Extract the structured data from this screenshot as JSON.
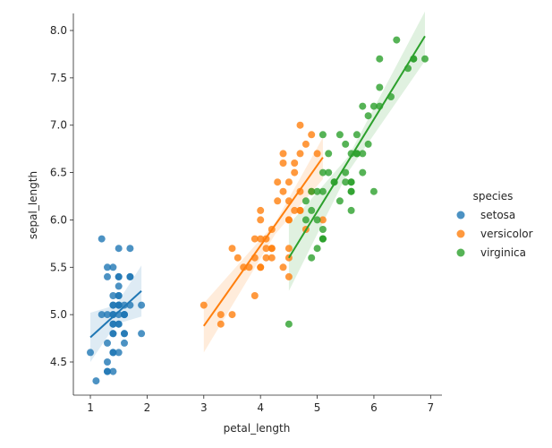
{
  "chart_data": {
    "type": "scatter",
    "xlabel": "petal_length",
    "ylabel": "sepal_length",
    "xlim": [
      0.7,
      7.2
    ],
    "ylim": [
      4.15,
      8.18
    ],
    "xticks": [
      1,
      2,
      3,
      4,
      5,
      6,
      7
    ],
    "yticks": [
      4.5,
      5.0,
      5.5,
      6.0,
      6.5,
      7.0,
      7.5,
      8.0
    ],
    "xtick_labels": [
      "1",
      "2",
      "3",
      "4",
      "5",
      "6",
      "7"
    ],
    "ytick_labels": [
      "4.5",
      "5.0",
      "5.5",
      "6.0",
      "6.5",
      "7.0",
      "7.5",
      "8.0"
    ],
    "grid": false,
    "legend_title": "species",
    "legend_position": "right",
    "series": [
      {
        "name": "setosa",
        "color": "#1f77b4",
        "fit_line": {
          "x": [
            1.0,
            1.9
          ],
          "y": [
            4.76,
            5.25
          ]
        },
        "ci_band": {
          "x": [
            1.0,
            1.45,
            1.9
          ],
          "upper": [
            5.02,
            5.1,
            5.52
          ],
          "lower": [
            4.5,
            4.9,
            4.98
          ]
        },
        "points": [
          [
            1.4,
            5.1
          ],
          [
            1.4,
            4.9
          ],
          [
            1.3,
            4.7
          ],
          [
            1.5,
            4.6
          ],
          [
            1.4,
            5.0
          ],
          [
            1.7,
            5.4
          ],
          [
            1.4,
            4.6
          ],
          [
            1.5,
            5.0
          ],
          [
            1.4,
            4.4
          ],
          [
            1.5,
            4.9
          ],
          [
            1.5,
            5.4
          ],
          [
            1.6,
            4.8
          ],
          [
            1.4,
            4.8
          ],
          [
            1.1,
            4.3
          ],
          [
            1.2,
            5.8
          ],
          [
            1.5,
            5.7
          ],
          [
            1.3,
            5.4
          ],
          [
            1.4,
            5.1
          ],
          [
            1.7,
            5.7
          ],
          [
            1.5,
            5.1
          ],
          [
            1.7,
            5.4
          ],
          [
            1.5,
            5.1
          ],
          [
            1.0,
            4.6
          ],
          [
            1.7,
            5.1
          ],
          [
            1.9,
            4.8
          ],
          [
            1.6,
            5.0
          ],
          [
            1.6,
            5.0
          ],
          [
            1.5,
            5.2
          ],
          [
            1.4,
            5.2
          ],
          [
            1.6,
            4.7
          ],
          [
            1.6,
            4.8
          ],
          [
            1.5,
            5.4
          ],
          [
            1.5,
            5.2
          ],
          [
            1.4,
            5.5
          ],
          [
            1.5,
            4.9
          ],
          [
            1.2,
            5.0
          ],
          [
            1.3,
            5.5
          ],
          [
            1.4,
            4.9
          ],
          [
            1.3,
            4.4
          ],
          [
            1.5,
            5.1
          ],
          [
            1.3,
            5.0
          ],
          [
            1.3,
            4.5
          ],
          [
            1.3,
            4.4
          ],
          [
            1.6,
            5.0
          ],
          [
            1.9,
            5.1
          ],
          [
            1.4,
            4.8
          ],
          [
            1.6,
            5.1
          ],
          [
            1.4,
            4.6
          ],
          [
            1.5,
            5.3
          ],
          [
            1.4,
            5.0
          ]
        ]
      },
      {
        "name": "versicolor",
        "color": "#ff7f0e",
        "fit_line": {
          "x": [
            3.0,
            5.1
          ],
          "y": [
            4.88,
            6.66
          ]
        },
        "ci_band": {
          "x": [
            3.0,
            4.26,
            5.1
          ],
          "upper": [
            5.12,
            5.97,
            6.87
          ],
          "lower": [
            4.6,
            5.85,
            6.43
          ]
        },
        "points": [
          [
            4.7,
            7.0
          ],
          [
            4.5,
            6.4
          ],
          [
            4.9,
            6.9
          ],
          [
            4.0,
            5.5
          ],
          [
            4.6,
            6.5
          ],
          [
            4.5,
            5.7
          ],
          [
            4.7,
            6.3
          ],
          [
            3.3,
            4.9
          ],
          [
            4.6,
            6.6
          ],
          [
            3.9,
            5.2
          ],
          [
            3.5,
            5.0
          ],
          [
            4.2,
            5.9
          ],
          [
            4.0,
            6.0
          ],
          [
            4.7,
            6.1
          ],
          [
            3.6,
            5.6
          ],
          [
            4.4,
            6.7
          ],
          [
            4.5,
            5.6
          ],
          [
            4.1,
            5.8
          ],
          [
            4.5,
            6.2
          ],
          [
            3.9,
            5.6
          ],
          [
            4.8,
            5.9
          ],
          [
            4.0,
            6.1
          ],
          [
            4.9,
            6.3
          ],
          [
            4.7,
            6.1
          ],
          [
            4.3,
            6.4
          ],
          [
            4.4,
            6.6
          ],
          [
            4.8,
            6.8
          ],
          [
            5.0,
            6.7
          ],
          [
            4.5,
            6.0
          ],
          [
            3.5,
            5.7
          ],
          [
            3.8,
            5.5
          ],
          [
            3.7,
            5.5
          ],
          [
            3.9,
            5.8
          ],
          [
            5.1,
            6.0
          ],
          [
            4.5,
            5.4
          ],
          [
            4.5,
            6.0
          ],
          [
            4.7,
            6.7
          ],
          [
            4.4,
            6.3
          ],
          [
            4.1,
            5.6
          ],
          [
            4.0,
            5.5
          ],
          [
            4.4,
            5.5
          ],
          [
            4.6,
            6.1
          ],
          [
            4.0,
            5.8
          ],
          [
            3.3,
            5.0
          ],
          [
            4.2,
            5.6
          ],
          [
            4.2,
            5.7
          ],
          [
            4.2,
            5.7
          ],
          [
            4.3,
            6.2
          ],
          [
            3.0,
            5.1
          ],
          [
            4.1,
            5.7
          ]
        ]
      },
      {
        "name": "virginica",
        "color": "#2ca02c",
        "fit_line": {
          "x": [
            4.5,
            6.9
          ],
          "y": [
            5.6,
            7.94
          ]
        },
        "ci_band": {
          "x": [
            4.5,
            5.55,
            6.9
          ],
          "upper": [
            5.95,
            6.67,
            8.2
          ],
          "lower": [
            5.25,
            6.51,
            7.68
          ]
        },
        "points": [
          [
            6.0,
            6.3
          ],
          [
            5.1,
            5.8
          ],
          [
            5.9,
            7.1
          ],
          [
            5.6,
            6.3
          ],
          [
            5.8,
            6.5
          ],
          [
            6.6,
            7.6
          ],
          [
            4.5,
            4.9
          ],
          [
            6.3,
            7.3
          ],
          [
            5.8,
            6.7
          ],
          [
            6.1,
            7.2
          ],
          [
            5.1,
            6.5
          ],
          [
            5.3,
            6.4
          ],
          [
            5.5,
            6.8
          ],
          [
            5.0,
            5.7
          ],
          [
            5.1,
            5.8
          ],
          [
            5.3,
            6.4
          ],
          [
            5.5,
            6.5
          ],
          [
            6.7,
            7.7
          ],
          [
            6.9,
            7.7
          ],
          [
            5.0,
            6.0
          ],
          [
            5.7,
            6.9
          ],
          [
            4.9,
            5.6
          ],
          [
            6.7,
            7.7
          ],
          [
            4.9,
            6.3
          ],
          [
            5.7,
            6.7
          ],
          [
            6.0,
            7.2
          ],
          [
            4.8,
            6.2
          ],
          [
            4.9,
            6.1
          ],
          [
            5.6,
            6.4
          ],
          [
            5.8,
            7.2
          ],
          [
            6.1,
            7.4
          ],
          [
            6.4,
            7.9
          ],
          [
            5.6,
            6.4
          ],
          [
            5.1,
            6.3
          ],
          [
            5.6,
            6.1
          ],
          [
            6.1,
            7.7
          ],
          [
            5.6,
            6.3
          ],
          [
            5.5,
            6.4
          ],
          [
            4.8,
            6.0
          ],
          [
            5.4,
            6.9
          ],
          [
            5.6,
            6.7
          ],
          [
            5.1,
            6.9
          ],
          [
            5.1,
            5.8
          ],
          [
            5.9,
            6.8
          ],
          [
            5.7,
            6.7
          ],
          [
            5.2,
            6.7
          ],
          [
            5.0,
            6.3
          ],
          [
            5.2,
            6.5
          ],
          [
            5.4,
            6.2
          ],
          [
            5.1,
            5.9
          ]
        ]
      }
    ]
  }
}
